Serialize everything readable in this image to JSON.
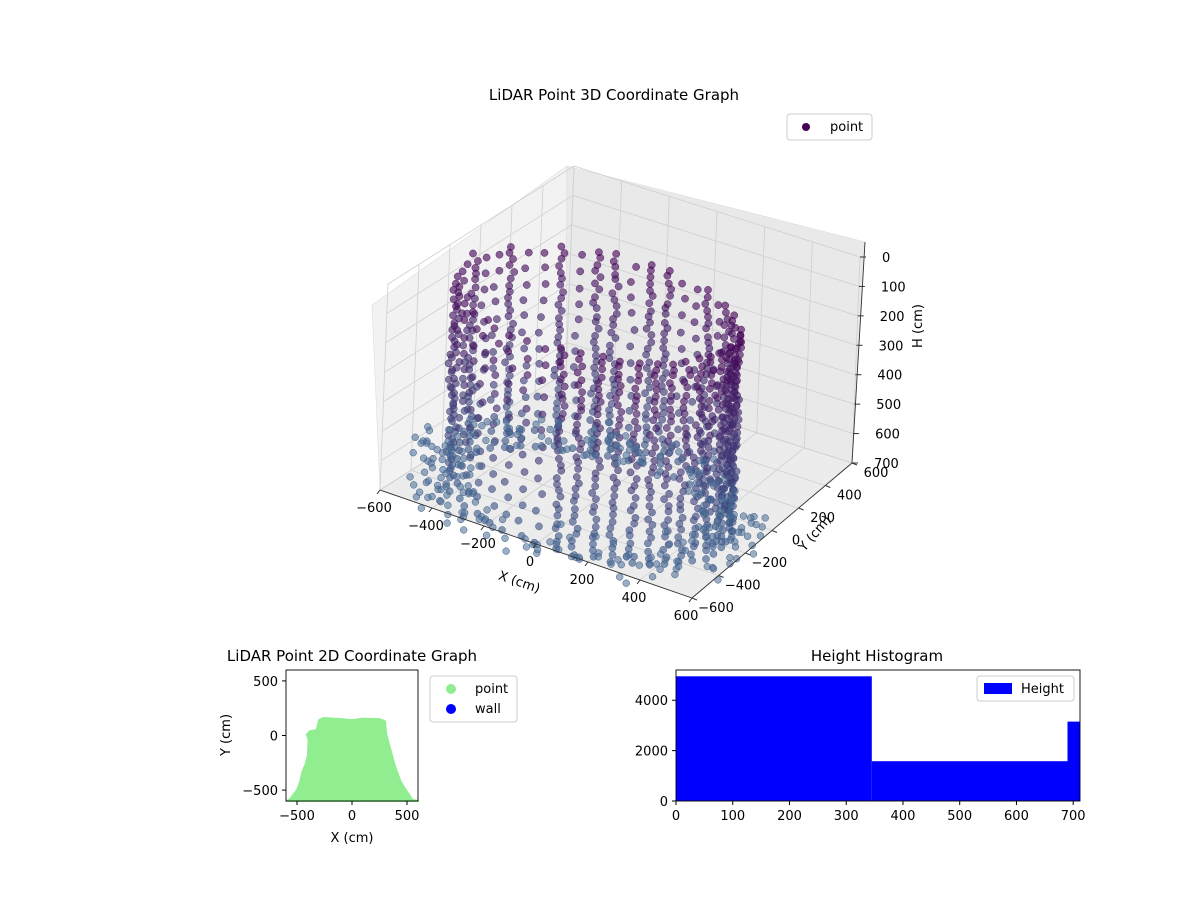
{
  "chart_data": [
    {
      "type": "scatter3d",
      "title": "LiDAR Point 3D Coordinate Graph",
      "xlim": [
        -600,
        600
      ],
      "ylim": [
        -600,
        600
      ],
      "zlim": [
        0,
        700
      ],
      "xticks": [
        "−600",
        "−400",
        "−200",
        "0",
        "200",
        "400",
        "600"
      ],
      "yticks": [
        "−600",
        "−400",
        "−200",
        "0",
        "200",
        "400",
        "600"
      ],
      "zticks": [
        "0",
        "100",
        "200",
        "300",
        "400",
        "500",
        "600",
        "700"
      ],
      "xlabel": "X (cm)",
      "ylabel": "Y (cm)",
      "zlabel": "H (cm)",
      "legend": [
        {
          "label": "point",
          "color": "#440154"
        }
      ],
      "legend_position": "top-right",
      "grid": true,
      "structure": {
        "room_x_range": [
          -600,
          600
        ],
        "room_y_back": 150,
        "room_y_front": -600,
        "wall_height": 700,
        "vertical_columns": 22,
        "color_low": "#3b5b8a",
        "color_high": "#440154"
      }
    },
    {
      "type": "scatter",
      "title": "LiDAR Point 2D Coordinate Graph",
      "xlabel": "X (cm)",
      "ylabel": "Y (cm)",
      "xlim": [
        -600,
        600
      ],
      "ylim": [
        -600,
        600
      ],
      "xticks": [
        "−500",
        "0",
        "500"
      ],
      "yticks": [
        "−500",
        "0",
        "500"
      ],
      "legend": [
        {
          "label": "point",
          "color": "#90ee90"
        },
        {
          "label": "wall",
          "color": "#0000ff"
        }
      ],
      "legend_position": "outside-right",
      "footprint": [
        [
          -590,
          -600
        ],
        [
          -560,
          -580
        ],
        [
          -500,
          -500
        ],
        [
          -470,
          -420
        ],
        [
          -450,
          -330
        ],
        [
          -420,
          -260
        ],
        [
          -400,
          -180
        ],
        [
          -395,
          -40
        ],
        [
          -410,
          10
        ],
        [
          -380,
          40
        ],
        [
          -320,
          50
        ],
        [
          -300,
          140
        ],
        [
          -260,
          160
        ],
        [
          -100,
          150
        ],
        [
          0,
          140
        ],
        [
          100,
          155
        ],
        [
          250,
          150
        ],
        [
          300,
          130
        ],
        [
          310,
          20
        ],
        [
          330,
          -60
        ],
        [
          390,
          -280
        ],
        [
          440,
          -420
        ],
        [
          490,
          -500
        ],
        [
          550,
          -590
        ],
        [
          600,
          -600
        ]
      ]
    },
    {
      "type": "histogram",
      "title": "Height Histogram",
      "bins": [
        {
          "x0": 0,
          "x1": 345,
          "value": 4950
        },
        {
          "x0": 345,
          "x1": 690,
          "value": 1580
        },
        {
          "x0": 690,
          "x1": 712,
          "value": 3150
        }
      ],
      "xlim": [
        0,
        712
      ],
      "ylim": [
        0,
        5200
      ],
      "xticks": [
        0,
        100,
        200,
        300,
        400,
        500,
        600,
        700
      ],
      "yticks": [
        0,
        2000,
        4000
      ],
      "legend": [
        {
          "label": "Height",
          "color": "#0000ff"
        }
      ],
      "legend_position": "top-right"
    }
  ]
}
